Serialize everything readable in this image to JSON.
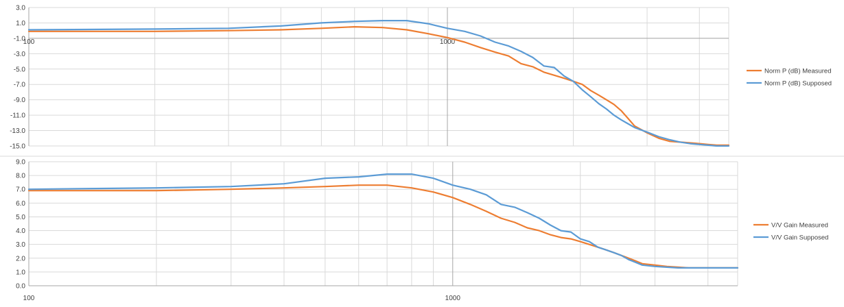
{
  "chart_data": [
    {
      "type": "line",
      "title": "",
      "xlabel": "",
      "ylabel": "",
      "x_scale": "log",
      "xlim": [
        100,
        4700
      ],
      "ylim": [
        -15.0,
        3.0
      ],
      "y_ticks": [
        3.0,
        1.0,
        -1.0,
        -3.0,
        -5.0,
        -7.0,
        -9.0,
        -11.0,
        -13.0,
        -15.0
      ],
      "y_tick_labels": [
        "3.0",
        "1.0",
        "-1.0",
        "-3.0",
        "-5.0",
        "-7.0",
        "-9.0",
        "-11.0",
        "-13.0",
        "-15.0"
      ],
      "x_tick_labels": [
        "100",
        "1000"
      ],
      "x_axis_crosses_at": -1.0,
      "grid": true,
      "legend_position": "right",
      "x": [
        100,
        200,
        300,
        400,
        500,
        600,
        700,
        800,
        900,
        1000,
        1100,
        1200,
        1300,
        1400,
        1500,
        1600,
        1700,
        1800,
        1900,
        2000,
        2100,
        2200,
        2300,
        2400,
        2500,
        2600,
        2700,
        2800,
        3000,
        3200,
        3400,
        3600,
        3800,
        4000,
        4200,
        4400,
        4700
      ],
      "series": [
        {
          "name": "Norm P (dB) Measured",
          "color": "#ED7D31",
          "values": [
            -0.1,
            -0.1,
            0.0,
            0.1,
            0.3,
            0.5,
            0.4,
            0.1,
            -0.4,
            -0.9,
            -1.5,
            -2.2,
            -2.8,
            -3.3,
            -4.3,
            -4.7,
            -5.4,
            -5.8,
            -6.2,
            -6.6,
            -7.0,
            -7.8,
            -8.4,
            -9.0,
            -9.6,
            -10.4,
            -11.4,
            -12.4,
            -13.3,
            -14.0,
            -14.4,
            -14.5,
            -14.6,
            -14.7,
            -14.8,
            -14.9,
            -14.9
          ]
        },
        {
          "name": "Norm P (dB) Supposed",
          "color": "#5B9BD5",
          "values": [
            0.1,
            0.2,
            0.3,
            0.6,
            1.0,
            1.2,
            1.3,
            1.3,
            0.9,
            0.3,
            -0.1,
            -0.7,
            -1.5,
            -2.0,
            -2.7,
            -3.5,
            -4.6,
            -4.8,
            -5.9,
            -6.6,
            -7.7,
            -8.6,
            -9.5,
            -10.2,
            -11.0,
            -11.6,
            -12.1,
            -12.6,
            -13.2,
            -13.8,
            -14.2,
            -14.5,
            -14.7,
            -14.8,
            -14.9,
            -15.0,
            -15.0
          ]
        }
      ]
    },
    {
      "type": "line",
      "title": "",
      "xlabel": "",
      "ylabel": "",
      "x_scale": "log",
      "xlim": [
        100,
        4700
      ],
      "ylim": [
        0.0,
        9.0
      ],
      "y_ticks": [
        9.0,
        8.0,
        7.0,
        6.0,
        5.0,
        4.0,
        3.0,
        2.0,
        1.0,
        0.0
      ],
      "y_tick_labels": [
        "9.0",
        "8.0",
        "7.0",
        "6.0",
        "5.0",
        "4.0",
        "3.0",
        "2.0",
        "1.0",
        "0.0"
      ],
      "x_tick_labels": [
        "100",
        "1000"
      ],
      "x_axis_crosses_at": 0.0,
      "grid": true,
      "legend_position": "right",
      "x": [
        100,
        200,
        300,
        400,
        500,
        600,
        700,
        800,
        900,
        1000,
        1100,
        1200,
        1300,
        1400,
        1500,
        1600,
        1700,
        1800,
        1900,
        2000,
        2100,
        2200,
        2300,
        2400,
        2500,
        2600,
        2700,
        2800,
        3000,
        3200,
        3400,
        3600,
        3800,
        4000,
        4200,
        4400,
        4700
      ],
      "series": [
        {
          "name": "V/V Gain Measured",
          "color": "#ED7D31",
          "values": [
            6.9,
            6.9,
            7.0,
            7.1,
            7.2,
            7.3,
            7.3,
            7.1,
            6.8,
            6.4,
            5.9,
            5.4,
            4.9,
            4.6,
            4.2,
            4.0,
            3.7,
            3.5,
            3.4,
            3.2,
            3.0,
            2.8,
            2.6,
            2.4,
            2.2,
            2.0,
            1.8,
            1.6,
            1.5,
            1.4,
            1.35,
            1.3,
            1.3,
            1.3,
            1.3,
            1.3,
            1.3
          ]
        },
        {
          "name": "V/V Gain Supposed",
          "color": "#5B9BD5",
          "values": [
            7.0,
            7.1,
            7.2,
            7.4,
            7.8,
            7.9,
            8.1,
            8.1,
            7.8,
            7.3,
            7.0,
            6.6,
            5.9,
            5.7,
            5.3,
            4.9,
            4.4,
            4.0,
            3.9,
            3.4,
            3.2,
            2.8,
            2.6,
            2.4,
            2.2,
            1.9,
            1.7,
            1.5,
            1.4,
            1.35,
            1.3,
            1.3,
            1.3,
            1.3,
            1.3,
            1.3,
            1.3
          ]
        }
      ]
    }
  ]
}
